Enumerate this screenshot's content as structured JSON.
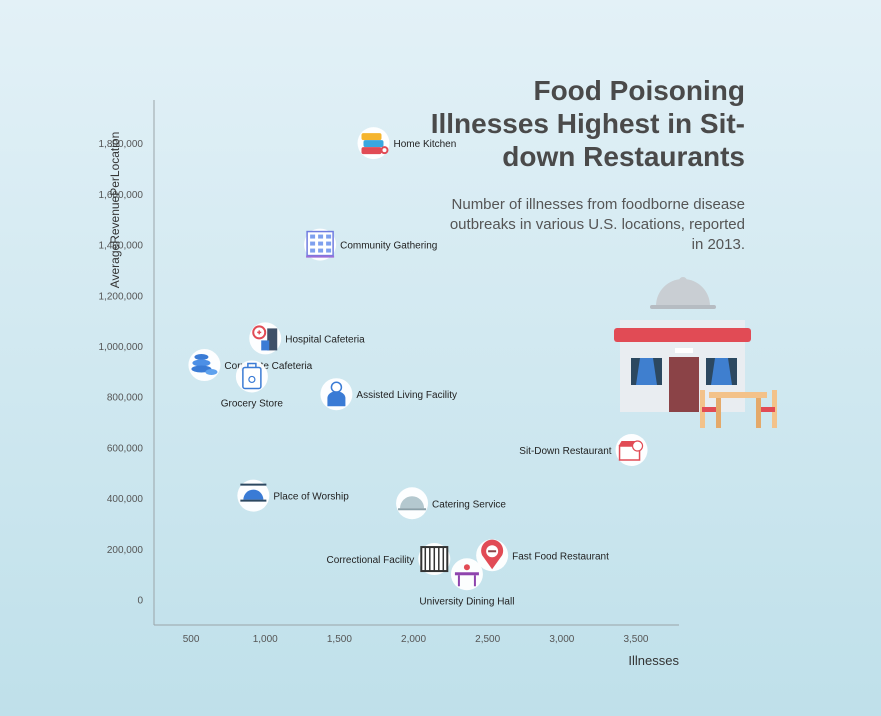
{
  "title": "Food Poisoning Illnesses Highest in Sit-down Restaurants",
  "subtitle": "Number of illnesses from foodborne disease outbreaks in various U.S. locations, reported in 2013.",
  "chart_data": {
    "type": "scatter",
    "xlabel": "Illnesses",
    "ylabel": "AverageRevenuePerLocation",
    "xlim": [
      250,
      3790
    ],
    "ylim": [
      -100000,
      1970000
    ],
    "x_ticks": [
      500,
      1000,
      1500,
      2000,
      2500,
      3000,
      3500
    ],
    "x_tick_labels": [
      "500",
      "1,000",
      "1,500",
      "2,000",
      "2,500",
      "3,000",
      "3,500"
    ],
    "y_ticks": [
      0,
      200000,
      400000,
      600000,
      800000,
      1000000,
      1200000,
      1400000,
      1600000,
      1800000
    ],
    "y_tick_labels": [
      "0",
      "200,000",
      "400,000",
      "600,000",
      "800,000",
      "1,000,000",
      "1,200,000",
      "1,400,000",
      "1,600,000",
      "1,800,000"
    ],
    "grid": false,
    "points": [
      {
        "label": "Home Kitchen",
        "x": 1730,
        "y": 1800000,
        "icon": "stacked-cups-icon",
        "label_side": "right"
      },
      {
        "label": "Community Gathering",
        "x": 1370,
        "y": 1400000,
        "icon": "building-icon",
        "label_side": "right"
      },
      {
        "label": "Hospital Cafeteria",
        "x": 1000,
        "y": 1030000,
        "icon": "hospital-icon",
        "label_side": "right"
      },
      {
        "label": "Corporate Cafeteria",
        "x": 590,
        "y": 925000,
        "icon": "food-stack-icon",
        "label_side": "right"
      },
      {
        "label": "Grocery Store",
        "x": 910,
        "y": 880000,
        "icon": "grocery-bag-icon",
        "label_side": "below"
      },
      {
        "label": "Assisted Living Facility",
        "x": 1480,
        "y": 810000,
        "icon": "caretaker-icon",
        "label_side": "right"
      },
      {
        "label": "Sit-Down Restaurant",
        "x": 3470,
        "y": 590000,
        "icon": "restaurant-icon",
        "label_side": "left"
      },
      {
        "label": "Place of Worship",
        "x": 920,
        "y": 410000,
        "icon": "cloche-table-icon",
        "label_side": "right"
      },
      {
        "label": "Catering Service",
        "x": 1990,
        "y": 380000,
        "icon": "cloche-icon",
        "label_side": "right"
      },
      {
        "label": "Correctional Facility",
        "x": 2140,
        "y": 160000,
        "icon": "jail-icon",
        "label_side": "left"
      },
      {
        "label": "Fast Food Restaurant",
        "x": 2530,
        "y": 175000,
        "icon": "burger-pin-icon",
        "label_side": "right"
      },
      {
        "label": "University Dining Hall",
        "x": 2360,
        "y": 100000,
        "icon": "dining-table-icon",
        "label_side": "below"
      }
    ]
  },
  "colors": {
    "text": "#4a4a4a",
    "axis": "#9aa4a8",
    "tick_text": "#555555",
    "bubble": "#ffffff",
    "accent_red": "#e14b55",
    "accent_blue": "#3a7bd5",
    "accent_purple": "#8e44ad"
  }
}
